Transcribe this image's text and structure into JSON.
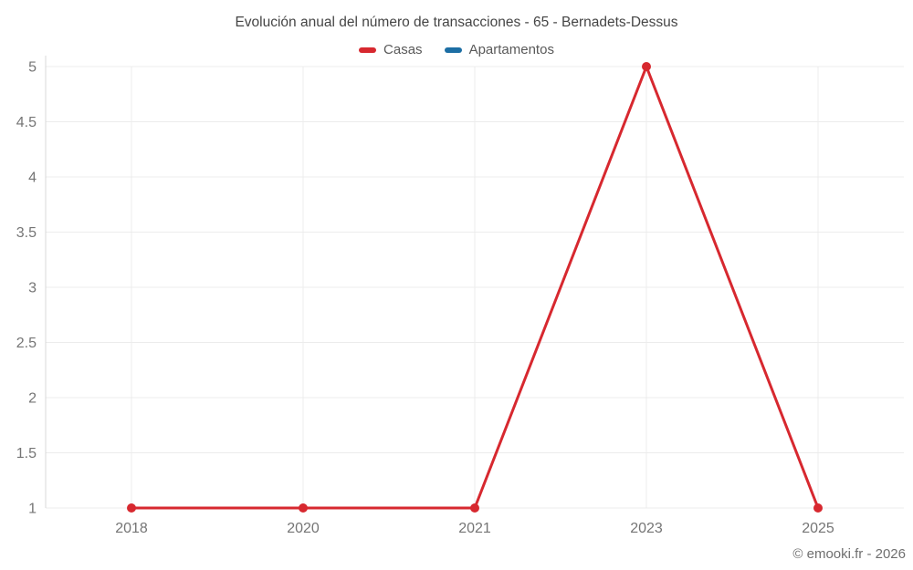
{
  "footer": {
    "copyright": "© emooki.fr - 2026"
  },
  "chart_data": {
    "type": "line",
    "title": "Evolución anual del número de transacciones - 65 - Bernadets-Dessus",
    "categories": [
      "2018",
      "2020",
      "2021",
      "2023",
      "2025"
    ],
    "series": [
      {
        "name": "Casas",
        "color": "#d7282f",
        "values": [
          1,
          1,
          1,
          5,
          1
        ]
      },
      {
        "name": "Apartamentos",
        "color": "#1c6ea4",
        "values": []
      }
    ],
    "ylim": [
      1,
      5
    ],
    "ytick_step": 0.5,
    "grid": true,
    "legend_position": "top",
    "marker_radius": 5,
    "line_width": 3,
    "colors": {
      "grid": "#ececec",
      "axis": "#d9d9d9",
      "tick_text": "#757575",
      "title_text": "#454545",
      "legend_text": "#595959",
      "footer_text": "#6f6f6f"
    }
  }
}
